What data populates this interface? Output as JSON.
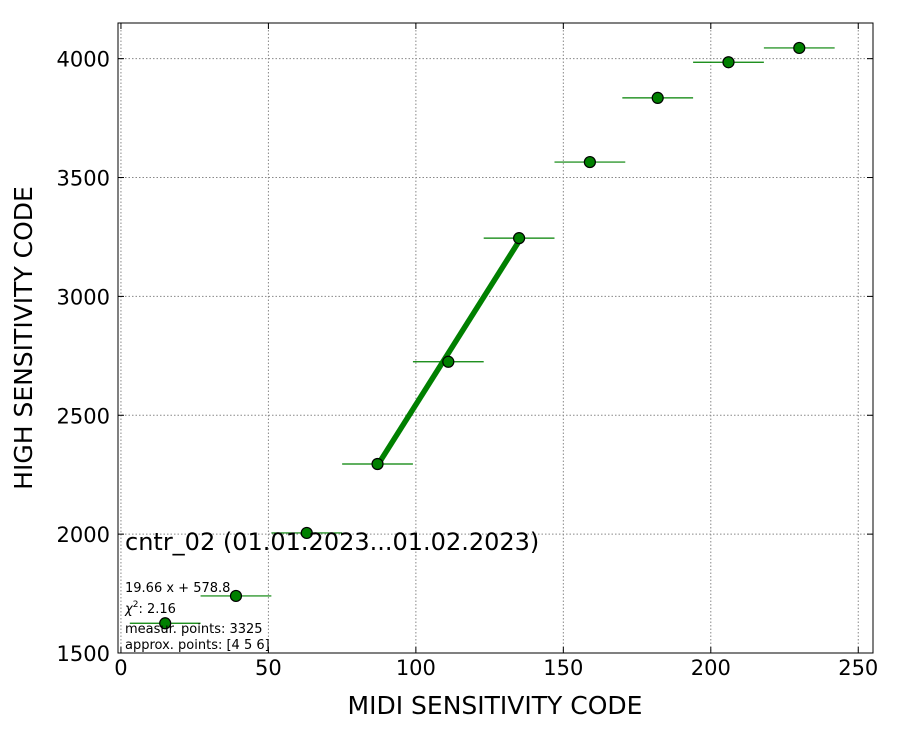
{
  "chart_data": {
    "type": "scatter",
    "title": "",
    "xlabel": "MIDI SENSITIVITY CODE",
    "ylabel": "HIGH SENSITIVITY CODE",
    "xlim": [
      -1,
      255
    ],
    "ylim": [
      1500,
      4150
    ],
    "x_ticks": [
      0,
      50,
      100,
      150,
      200,
      250
    ],
    "y_ticks": [
      1500,
      2000,
      2500,
      3000,
      3500,
      4000
    ],
    "grid": true,
    "colors": {
      "points": "#008000",
      "point_edge": "#000000",
      "fit_line": "#008000",
      "error_bars": "#008000"
    },
    "series": [
      {
        "kind": "points_with_xerr",
        "points": [
          {
            "x": 15,
            "y": 1625,
            "xerr": 12
          },
          {
            "x": 39,
            "y": 1740,
            "xerr": 12
          },
          {
            "x": 63,
            "y": 2005,
            "xerr": 12
          },
          {
            "x": 87,
            "y": 2295,
            "xerr": 12
          },
          {
            "x": 111,
            "y": 2725,
            "xerr": 12
          },
          {
            "x": 135,
            "y": 3245,
            "xerr": 12
          },
          {
            "x": 159,
            "y": 3565,
            "xerr": 12
          },
          {
            "x": 182,
            "y": 3835,
            "xerr": 12
          },
          {
            "x": 206,
            "y": 3985,
            "xerr": 12
          },
          {
            "x": 230,
            "y": 4045,
            "xerr": 12
          }
        ]
      },
      {
        "kind": "fit_line",
        "slope": 19.66,
        "intercept": 578.8,
        "x_range": [
          87,
          135
        ]
      }
    ],
    "annotations": {
      "title_text": "cntr_02 (01.01.2023...01.02.2023)",
      "fit_equation": "19.66 x + 578.8",
      "chi2_label": "χ",
      "chi2_superscript": "2",
      "chi2_value": ": 2.16",
      "measur_points": "measur. points: 3325",
      "approx_points": "approx. points: [4 5 6]"
    }
  }
}
